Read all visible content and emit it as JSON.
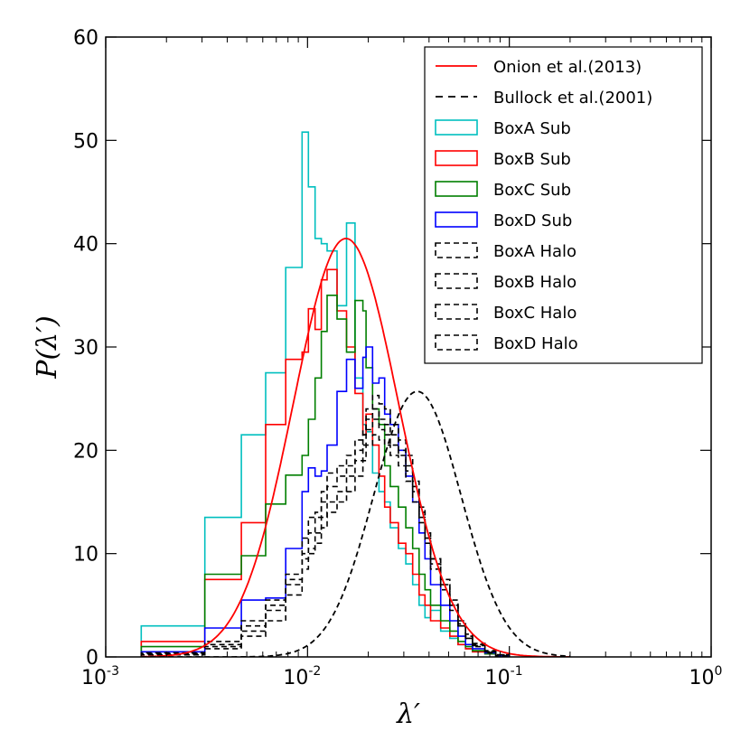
{
  "chart_data": {
    "type": "line",
    "title": "",
    "xlabel": "λ′",
    "ylabel": "P(λ′)",
    "xscale": "log",
    "xlim": [
      0.001,
      1
    ],
    "ylim": [
      0,
      60
    ],
    "grid": false,
    "legend_position": "top-right",
    "x_ticks": [
      {
        "value": 0.001,
        "base": "10",
        "exp": "-3"
      },
      {
        "value": 0.01,
        "base": "10",
        "exp": "-2"
      },
      {
        "value": 0.1,
        "base": "10",
        "exp": "-1"
      },
      {
        "value": 1,
        "base": "10",
        "exp": "0"
      }
    ],
    "y_ticks": [
      {
        "value": 0,
        "label": "0"
      },
      {
        "value": 10,
        "label": "10"
      },
      {
        "value": 20,
        "label": "20"
      },
      {
        "value": 30,
        "label": "30"
      },
      {
        "value": 40,
        "label": "40"
      },
      {
        "value": 50,
        "label": "50"
      },
      {
        "value": 60,
        "label": "60"
      }
    ],
    "curves": [
      {
        "name": "Onion et al.(2013)",
        "color": "#ff0000",
        "dash": "solid",
        "lambda0": 0.0155,
        "sigma": 0.6,
        "amp": 40.5
      },
      {
        "name": "Bullock et al.(2001)",
        "color": "#000000",
        "dash": "dashed",
        "lambda0": 0.035,
        "sigma": 0.5,
        "amp": 25.7
      }
    ],
    "series": [
      {
        "name": "BoxA Sub",
        "color": "#00bfbf",
        "dash": "solid",
        "edges": [
          0.0015,
          0.0031,
          0.0047,
          0.0062,
          0.0078,
          0.0094,
          0.0101,
          0.0109,
          0.0117,
          0.0125,
          0.014,
          0.0156,
          0.0172,
          0.0188,
          0.0195,
          0.021,
          0.0226,
          0.0241,
          0.0257,
          0.0282,
          0.0307,
          0.0332,
          0.0357,
          0.0382,
          0.0407,
          0.0457,
          0.0507,
          0.0557,
          0.0607,
          0.0657,
          0.0757,
          0.0857,
          0.1
        ],
        "values": [
          3,
          13.5,
          21.5,
          27.5,
          37.7,
          50.8,
          45.5,
          40.5,
          40,
          39.3,
          34,
          42,
          27,
          22.5,
          21.8,
          17.8,
          16,
          15,
          12.5,
          10.5,
          9,
          7,
          5,
          3.8,
          4.5,
          2.5,
          1.8,
          1.2,
          0.8,
          0.5,
          0.3,
          0.1
        ]
      },
      {
        "name": "BoxB Sub",
        "color": "#ff0000",
        "dash": "solid",
        "edges": [
          0.0015,
          0.0031,
          0.0047,
          0.0062,
          0.0078,
          0.0094,
          0.0101,
          0.0109,
          0.0117,
          0.0125,
          0.014,
          0.0156,
          0.0172,
          0.0188,
          0.0195,
          0.021,
          0.0226,
          0.0241,
          0.0257,
          0.0282,
          0.0307,
          0.0332,
          0.0357,
          0.0382,
          0.0407,
          0.0457,
          0.0507,
          0.0557,
          0.0607,
          0.0657,
          0.0757,
          0.0857,
          0.1
        ],
        "values": [
          1.5,
          7.5,
          13,
          22.5,
          28.8,
          29.5,
          33.7,
          31.7,
          36.5,
          37.5,
          33.5,
          30,
          25.5,
          21.5,
          23.5,
          20.5,
          17.5,
          14.5,
          13,
          11,
          10,
          8,
          6,
          5,
          3.5,
          2.8,
          2,
          1.2,
          0.8,
          0.5,
          0.3,
          0.1
        ]
      },
      {
        "name": "BoxC Sub",
        "color": "#007f00",
        "dash": "solid",
        "edges": [
          0.0015,
          0.0031,
          0.0047,
          0.0062,
          0.0078,
          0.0094,
          0.0101,
          0.0109,
          0.0117,
          0.0125,
          0.014,
          0.0156,
          0.0172,
          0.0188,
          0.0195,
          0.021,
          0.0226,
          0.0241,
          0.0257,
          0.0282,
          0.0307,
          0.0332,
          0.0357,
          0.0382,
          0.0407,
          0.0457,
          0.0507,
          0.0557,
          0.0607,
          0.0657,
          0.0757,
          0.0857,
          0.1
        ],
        "values": [
          1,
          8,
          9.8,
          14.8,
          17.6,
          19.5,
          23,
          27,
          31.5,
          35,
          32.7,
          29.5,
          34.5,
          33.5,
          28,
          24,
          22.5,
          18.5,
          16.5,
          14.5,
          12.5,
          10.5,
          8,
          6.5,
          5,
          3.5,
          2.5,
          1.5,
          1,
          0.6,
          0.3,
          0.1
        ]
      },
      {
        "name": "BoxD Sub",
        "color": "#0000ff",
        "dash": "solid",
        "edges": [
          0.0015,
          0.0031,
          0.0047,
          0.0062,
          0.0078,
          0.0094,
          0.0101,
          0.0109,
          0.0117,
          0.0125,
          0.014,
          0.0156,
          0.0172,
          0.0188,
          0.0195,
          0.021,
          0.0226,
          0.0241,
          0.0257,
          0.0282,
          0.0307,
          0.0332,
          0.0357,
          0.0382,
          0.0407,
          0.0457,
          0.0507,
          0.0557,
          0.0607,
          0.0657,
          0.0757,
          0.0857,
          0.1
        ],
        "values": [
          0.5,
          2.8,
          5.5,
          5.7,
          10.5,
          16,
          18.3,
          17.5,
          18,
          20.5,
          25.7,
          28.8,
          26,
          29,
          30,
          26.5,
          27,
          23.5,
          22.5,
          20,
          17.5,
          15,
          12,
          9.5,
          7,
          5,
          3.5,
          2,
          1.2,
          0.8,
          0.4,
          0.1
        ]
      },
      {
        "name": "BoxA Halo",
        "color": "#000000",
        "dash": "dashed",
        "edges": [
          0.0015,
          0.0031,
          0.0047,
          0.0062,
          0.0078,
          0.0094,
          0.0101,
          0.0109,
          0.0117,
          0.0125,
          0.014,
          0.0156,
          0.0172,
          0.0188,
          0.0195,
          0.021,
          0.0226,
          0.0241,
          0.0257,
          0.0282,
          0.0307,
          0.0332,
          0.0357,
          0.0382,
          0.0407,
          0.0457,
          0.0507,
          0.0557,
          0.0607,
          0.0657,
          0.0757,
          0.0857,
          0.1
        ],
        "values": [
          0.3,
          1.2,
          3,
          5.5,
          8,
          11.5,
          13.5,
          14,
          16,
          17.8,
          18.5,
          19.5,
          21,
          22,
          24,
          25.3,
          24.5,
          24,
          22.5,
          21,
          19.5,
          17,
          14.5,
          12,
          9.5,
          7.5,
          5.5,
          3.5,
          2.2,
          1.3,
          0.6,
          0.2
        ]
      },
      {
        "name": "BoxB Halo",
        "color": "#000000",
        "dash": "dashed",
        "edges": [
          0.0015,
          0.0031,
          0.0047,
          0.0062,
          0.0078,
          0.0094,
          0.0101,
          0.0109,
          0.0117,
          0.0125,
          0.014,
          0.0156,
          0.0172,
          0.0188,
          0.0195,
          0.021,
          0.0226,
          0.0241,
          0.0257,
          0.0282,
          0.0307,
          0.0332,
          0.0357,
          0.0382,
          0.0407,
          0.0457,
          0.0507,
          0.0557,
          0.0607,
          0.0657,
          0.0757,
          0.0857,
          0.1
        ],
        "values": [
          0.2,
          1,
          2.5,
          4.5,
          7,
          10,
          12,
          13.5,
          15,
          16.5,
          17.5,
          18.5,
          20,
          21.5,
          23,
          24,
          23,
          22.5,
          21.5,
          20,
          18.5,
          16.5,
          14,
          11.5,
          9.5,
          7,
          5,
          3.2,
          2,
          1.2,
          0.5,
          0.2
        ]
      },
      {
        "name": "BoxC Halo",
        "color": "#000000",
        "dash": "dashed",
        "edges": [
          0.0015,
          0.0031,
          0.0047,
          0.0062,
          0.0078,
          0.0094,
          0.0101,
          0.0109,
          0.0117,
          0.0125,
          0.014,
          0.0156,
          0.0172,
          0.0188,
          0.0195,
          0.021,
          0.0226,
          0.0241,
          0.0257,
          0.0282,
          0.0307,
          0.0332,
          0.0357,
          0.0382,
          0.0407,
          0.0457,
          0.0507,
          0.0557,
          0.0607,
          0.0657,
          0.0757,
          0.0857,
          0.1
        ],
        "values": [
          0.4,
          1.5,
          3.5,
          5,
          7.5,
          9.5,
          10.5,
          12,
          13.5,
          15,
          16,
          17.5,
          19,
          20.5,
          22,
          23,
          22,
          21.5,
          20.5,
          19.5,
          18,
          16,
          13.5,
          11.5,
          9,
          7,
          5,
          3,
          1.8,
          1.1,
          0.5,
          0.2
        ]
      },
      {
        "name": "BoxD Halo",
        "color": "#000000",
        "dash": "dashed",
        "edges": [
          0.0015,
          0.0031,
          0.0047,
          0.0062,
          0.0078,
          0.0094,
          0.0101,
          0.0109,
          0.0117,
          0.0125,
          0.014,
          0.0156,
          0.0172,
          0.0188,
          0.0195,
          0.021,
          0.0226,
          0.0241,
          0.0257,
          0.0282,
          0.0307,
          0.0332,
          0.0357,
          0.0382,
          0.0407,
          0.0457,
          0.0507,
          0.0557,
          0.0607,
          0.0657,
          0.0757,
          0.0857,
          0.1
        ],
        "values": [
          0.3,
          0.8,
          2,
          3.5,
          6,
          8.5,
          10,
          11,
          12.5,
          14,
          15,
          16,
          17.5,
          19,
          20.5,
          21.5,
          21,
          20.5,
          19.5,
          18.5,
          17,
          15,
          13,
          11,
          8.5,
          6.5,
          4.5,
          3,
          1.8,
          1,
          0.4,
          0.1
        ]
      }
    ]
  }
}
